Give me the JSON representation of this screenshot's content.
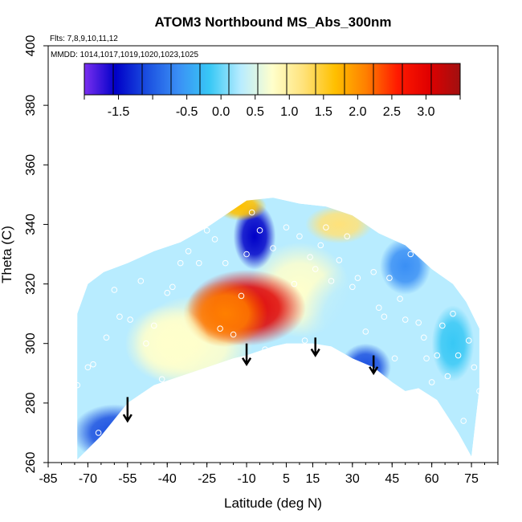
{
  "chart_data": {
    "type": "heatmap",
    "title": "ATOM3 Northbound MS_Abs_300nm",
    "flights_note": "Flts: 7,8,9,10,11,12",
    "dates_note": "MMDD: 1014,1017,1019,1020,1023,1025",
    "xlabel": "Latitude (deg N)",
    "ylabel": "Theta (C)",
    "xlim": [
      -85,
      85
    ],
    "ylim": [
      260,
      400
    ],
    "x_ticks": [
      -85,
      -70,
      -55,
      -40,
      -25,
      -10,
      5,
      15,
      30,
      45,
      60,
      75
    ],
    "y_ticks": [
      260,
      280,
      300,
      320,
      340,
      360,
      380,
      400
    ],
    "colorbar": {
      "range": [
        -2,
        3.5
      ],
      "tick_values": [
        -1.5,
        -0.5,
        0.0,
        0.5,
        1.0,
        1.5,
        2.0,
        2.5,
        3.0
      ],
      "tick_labels": [
        "-1.5",
        "-0.5",
        "0.0",
        "0.5",
        "1.0",
        "1.5",
        "2.0",
        "2.5",
        "3.0"
      ],
      "colors": [
        "#7b2ff0",
        "#0000c8",
        "#1b4fe0",
        "#3a8ff5",
        "#38c8f5",
        "#b8ecff",
        "#ffffcc",
        "#ffe27a",
        "#ffc000",
        "#ff7f00",
        "#ff1a00",
        "#e00000",
        "#a01010"
      ]
    },
    "boundary": {
      "top_theta": [
        [
          -74,
          310
        ],
        [
          -70,
          320
        ],
        [
          -64,
          324
        ],
        [
          -55,
          327
        ],
        [
          -45,
          331
        ],
        [
          -35,
          334
        ],
        [
          -25,
          339
        ],
        [
          -15,
          345
        ],
        [
          -10,
          348
        ],
        [
          0,
          349
        ],
        [
          10,
          347
        ],
        [
          20,
          346
        ],
        [
          30,
          343
        ],
        [
          40,
          337
        ],
        [
          50,
          333
        ],
        [
          60,
          325
        ],
        [
          68,
          320
        ],
        [
          73,
          314
        ],
        [
          78,
          305
        ]
      ],
      "bottom_theta": [
        [
          -74,
          261
        ],
        [
          -65,
          269
        ],
        [
          -55,
          280
        ],
        [
          -45,
          286
        ],
        [
          -35,
          289
        ],
        [
          -25,
          292
        ],
        [
          -15,
          295
        ],
        [
          -10,
          296
        ],
        [
          0,
          299
        ],
        [
          5,
          300
        ],
        [
          15,
          300
        ],
        [
          22,
          299
        ],
        [
          30,
          295
        ],
        [
          38,
          292
        ],
        [
          45,
          287
        ],
        [
          50,
          284
        ],
        [
          55,
          285
        ],
        [
          62,
          281
        ],
        [
          70,
          270
        ],
        [
          75,
          262
        ],
        [
          78,
          285
        ]
      ]
    },
    "features": [
      {
        "lat": -10,
        "theta": 312,
        "value": 3.0,
        "radius": [
          14,
          8
        ]
      },
      {
        "lat": -18,
        "theta": 310,
        "value": 2.2,
        "radius": [
          10,
          7
        ]
      },
      {
        "lat": -7,
        "theta": 336,
        "value": -1.5,
        "radius": [
          5,
          7
        ]
      },
      {
        "lat": 35,
        "theta": 292,
        "value": -1.2,
        "radius": [
          6,
          5
        ]
      },
      {
        "lat": -60,
        "theta": 270,
        "value": -0.9,
        "radius": [
          10,
          6
        ]
      },
      {
        "lat": -12,
        "theta": 346,
        "value": 1.5,
        "radius": [
          6,
          3
        ]
      },
      {
        "lat": 25,
        "theta": 340,
        "value": 1.1,
        "radius": [
          8,
          4
        ]
      },
      {
        "lat": 50,
        "theta": 326,
        "value": -0.6,
        "radius": [
          6,
          6
        ]
      },
      {
        "lat": 68,
        "theta": 300,
        "value": -0.2,
        "radius": [
          5,
          8
        ]
      },
      {
        "lat": -40,
        "theta": 300,
        "value": 0.7,
        "radius": [
          10,
          8
        ]
      }
    ],
    "base_value": 0.3,
    "arrows": [
      {
        "lat": -55,
        "theta_top": 282,
        "theta_bottom": 274
      },
      {
        "lat": -10,
        "theta_top": 300,
        "theta_bottom": 293
      },
      {
        "lat": 16,
        "theta_top": 302,
        "theta_bottom": 296
      },
      {
        "lat": 38,
        "theta_top": 296,
        "theta_bottom": 290
      }
    ],
    "sample_points": [
      [
        -78,
        311
      ],
      [
        -76,
        296
      ],
      [
        -74,
        286
      ],
      [
        -70,
        292
      ],
      [
        -68,
        293
      ],
      [
        -66,
        270
      ],
      [
        -63,
        302
      ],
      [
        -60,
        318
      ],
      [
        -58,
        309
      ],
      [
        -54,
        308
      ],
      [
        -50,
        321
      ],
      [
        -48,
        300
      ],
      [
        -45,
        306
      ],
      [
        -42,
        288
      ],
      [
        -40,
        317
      ],
      [
        -38,
        319
      ],
      [
        -35,
        327
      ],
      [
        -32,
        331
      ],
      [
        -28,
        327
      ],
      [
        -25,
        338
      ],
      [
        -22,
        335
      ],
      [
        -20,
        305
      ],
      [
        -18,
        327
      ],
      [
        -15,
        303
      ],
      [
        -12,
        316
      ],
      [
        -10,
        330
      ],
      [
        -8,
        344
      ],
      [
        -5,
        338
      ],
      [
        -3,
        298
      ],
      [
        0,
        332
      ],
      [
        3,
        298
      ],
      [
        5,
        339
      ],
      [
        8,
        320
      ],
      [
        10,
        336
      ],
      [
        12,
        301
      ],
      [
        14,
        329
      ],
      [
        16,
        325
      ],
      [
        18,
        333
      ],
      [
        20,
        339
      ],
      [
        22,
        321
      ],
      [
        25,
        328
      ],
      [
        28,
        336
      ],
      [
        30,
        319
      ],
      [
        32,
        322
      ],
      [
        35,
        304
      ],
      [
        38,
        324
      ],
      [
        40,
        312
      ],
      [
        42,
        309
      ],
      [
        44,
        322
      ],
      [
        46,
        295
      ],
      [
        48,
        315
      ],
      [
        50,
        308
      ],
      [
        52,
        330
      ],
      [
        55,
        307
      ],
      [
        57,
        302
      ],
      [
        58,
        295
      ],
      [
        60,
        287
      ],
      [
        62,
        296
      ],
      [
        64,
        306
      ],
      [
        66,
        289
      ],
      [
        68,
        310
      ],
      [
        70,
        296
      ],
      [
        72,
        274
      ],
      [
        74,
        301
      ],
      [
        76,
        292
      ],
      [
        78,
        284
      ]
    ]
  }
}
